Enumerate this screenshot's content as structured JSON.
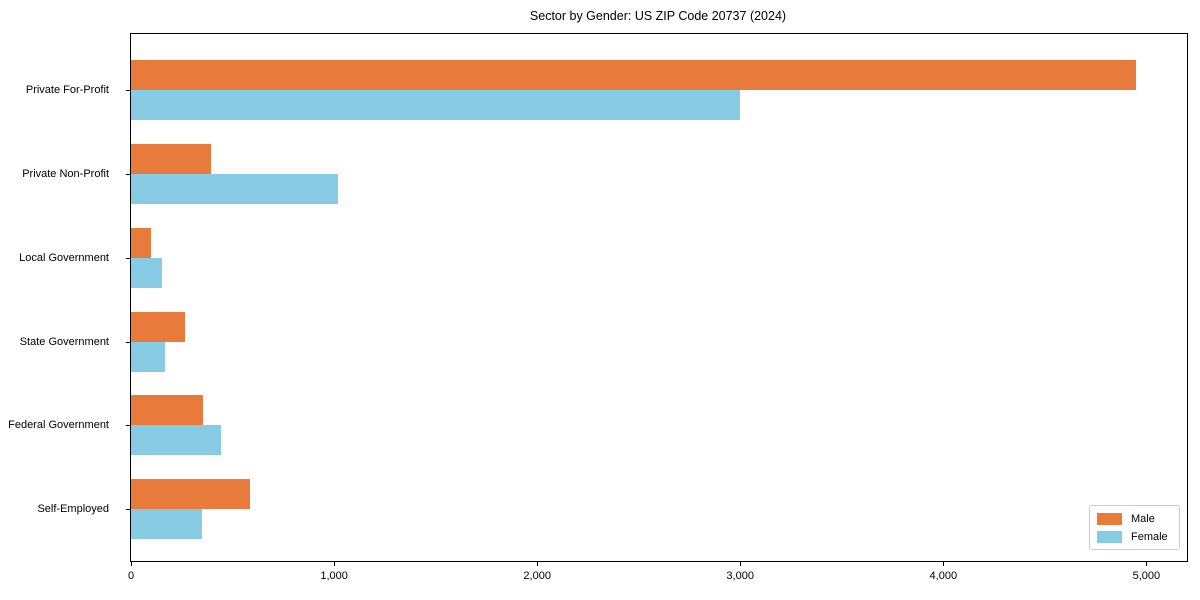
{
  "title": "Sector by Gender: US ZIP Code 20737 (2024)",
  "colors": {
    "male": "#e87a3c",
    "female": "#87cbe5",
    "axis": "#000000",
    "legend_border": "#cccccc",
    "background": "#ffffff"
  },
  "legend": {
    "position": "lower right",
    "items": [
      {
        "label": "Male",
        "color": "#e87a3c"
      },
      {
        "label": "Female",
        "color": "#87cbe5"
      }
    ]
  },
  "chart_data": {
    "type": "bar",
    "orientation": "horizontal",
    "title": "Sector by Gender: US ZIP Code 20737 (2024)",
    "xlabel": "",
    "ylabel": "",
    "categories": [
      "Private For-Profit",
      "Private Non-Profit",
      "Local Government",
      "State Government",
      "Federal Government",
      "Self-Employed"
    ],
    "series": [
      {
        "name": "Male",
        "color": "#e87a3c",
        "values": [
          4950,
          395,
          100,
          265,
          355,
          585
        ]
      },
      {
        "name": "Female",
        "color": "#87cbe5",
        "values": [
          3000,
          1020,
          150,
          165,
          445,
          350
        ]
      }
    ],
    "xlim": [
      0,
      5200
    ],
    "xticks": [
      0,
      1000,
      2000,
      3000,
      4000,
      5000
    ],
    "xtick_labels": [
      "0",
      "1,000",
      "2,000",
      "3,000",
      "4,000",
      "5,000"
    ],
    "grid": false,
    "legend_position": "lower right"
  }
}
